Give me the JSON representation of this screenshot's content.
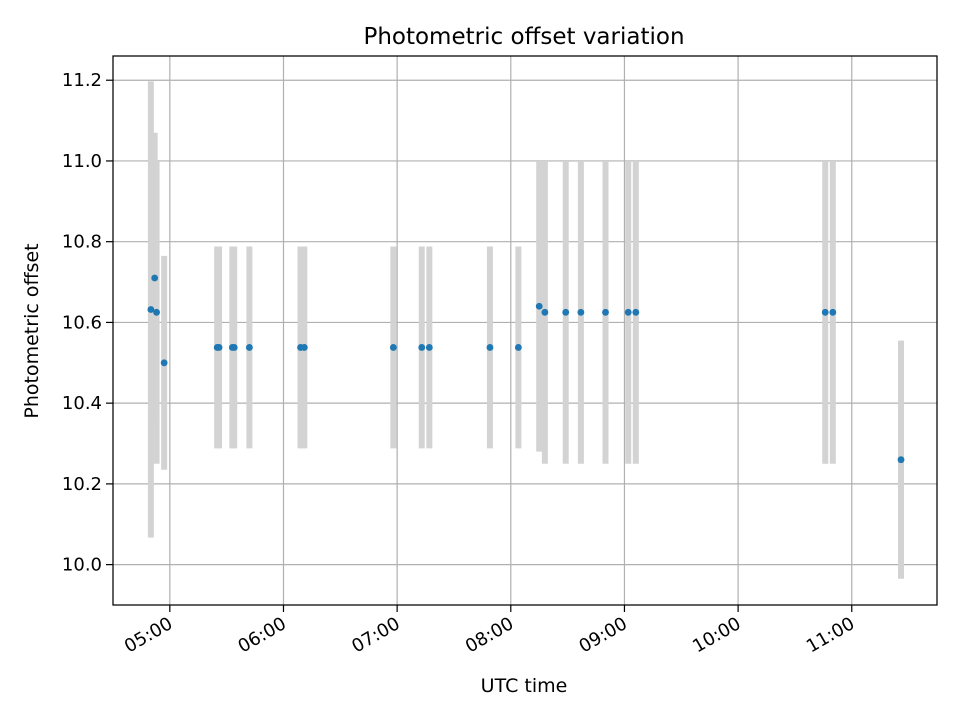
{
  "chart_data": {
    "type": "scatter",
    "title": "Photometric offset variation",
    "xlabel": "UTC time",
    "ylabel": "Photometric offset",
    "x_tick_labels": [
      "05:00",
      "06:00",
      "07:00",
      "08:00",
      "09:00",
      "10:00",
      "11:00"
    ],
    "x_ticks": [
      "05:00",
      "06:00",
      "07:00",
      "08:00",
      "09:00",
      "10:00",
      "11:00"
    ],
    "xlim": [
      "04:30",
      "11:45"
    ],
    "y_tick_labels": [
      "10.0",
      "10.2",
      "10.4",
      "10.6",
      "10.8",
      "11.0",
      "11.2"
    ],
    "y_ticks": [
      10.0,
      10.2,
      10.4,
      10.6,
      10.8,
      11.0,
      11.2
    ],
    "ylim": [
      9.9,
      11.26
    ],
    "grid": true,
    "error_bars": true,
    "points": [
      {
        "x": "04:50",
        "y": 10.632,
        "err": 0.565
      },
      {
        "x": "04:52",
        "y": 10.71,
        "err": 0.36
      },
      {
        "x": "04:53",
        "y": 10.625,
        "err": 0.375
      },
      {
        "x": "04:57",
        "y": 10.5,
        "err": 0.265
      },
      {
        "x": "05:25",
        "y": 10.538,
        "err": 0.25
      },
      {
        "x": "05:26",
        "y": 10.538,
        "err": 0.25
      },
      {
        "x": "05:33",
        "y": 10.538,
        "err": 0.25
      },
      {
        "x": "05:34",
        "y": 10.538,
        "err": 0.25
      },
      {
        "x": "05:42",
        "y": 10.538,
        "err": 0.25
      },
      {
        "x": "06:09",
        "y": 10.538,
        "err": 0.25
      },
      {
        "x": "06:11",
        "y": 10.538,
        "err": 0.25
      },
      {
        "x": "06:58",
        "y": 10.538,
        "err": 0.25
      },
      {
        "x": "07:13",
        "y": 10.538,
        "err": 0.25
      },
      {
        "x": "07:17",
        "y": 10.538,
        "err": 0.25
      },
      {
        "x": "07:49",
        "y": 10.538,
        "err": 0.25
      },
      {
        "x": "08:04",
        "y": 10.538,
        "err": 0.25
      },
      {
        "x": "08:15",
        "y": 10.64,
        "err": 0.36
      },
      {
        "x": "08:18",
        "y": 10.625,
        "err": 0.375
      },
      {
        "x": "08:29",
        "y": 10.625,
        "err": 0.375
      },
      {
        "x": "08:37",
        "y": 10.625,
        "err": 0.375
      },
      {
        "x": "08:50",
        "y": 10.625,
        "err": 0.375
      },
      {
        "x": "09:02",
        "y": 10.625,
        "err": 0.375
      },
      {
        "x": "09:06",
        "y": 10.625,
        "err": 0.375
      },
      {
        "x": "10:46",
        "y": 10.625,
        "err": 0.375
      },
      {
        "x": "10:50",
        "y": 10.625,
        "err": 0.375
      },
      {
        "x": "11:26",
        "y": 10.26,
        "err": 0.295
      }
    ],
    "colors": {
      "marker": "#1f77b4",
      "error_bar": "#d3d3d3",
      "grid": "#b0b0b0"
    }
  }
}
